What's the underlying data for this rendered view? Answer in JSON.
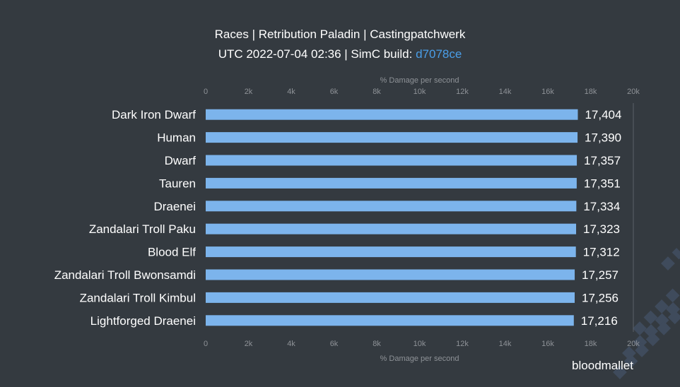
{
  "header": {
    "title": "Races | Retribution Paladin | Castingpatchwerk",
    "subtitle_prefix": "UTC 2022-07-04 02:36 | SimC build: ",
    "build_link": "d7078ce"
  },
  "brand": "bloodmallet",
  "colors": {
    "background": "#343a40",
    "bar": "#7cb4ec",
    "text": "#ffffff",
    "axis_text": "#8e9297",
    "link": "#4a9ee8"
  },
  "chart_data": {
    "type": "bar",
    "orientation": "horizontal",
    "categories": [
      "Dark Iron Dwarf",
      "Human",
      "Dwarf",
      "Tauren",
      "Draenei",
      "Zandalari Troll Paku",
      "Blood Elf",
      "Zandalari Troll Bwonsamdi",
      "Zandalari Troll Kimbul",
      "Lightforged Draenei"
    ],
    "values": [
      17404,
      17390,
      17357,
      17351,
      17334,
      17323,
      17312,
      17257,
      17256,
      17216
    ],
    "value_labels": [
      "17,404",
      "17,390",
      "17,357",
      "17,351",
      "17,334",
      "17,323",
      "17,312",
      "17,257",
      "17,256",
      "17,216"
    ],
    "xlabel": "% Damage per second",
    "xlim": [
      0,
      20000
    ],
    "tick_values": [
      0,
      2000,
      4000,
      6000,
      8000,
      10000,
      12000,
      14000,
      16000,
      18000,
      20000
    ],
    "tick_labels": [
      "0",
      "2k",
      "4k",
      "6k",
      "8k",
      "10k",
      "12k",
      "14k",
      "16k",
      "18k",
      "20k"
    ],
    "axis_positions": [
      "top",
      "bottom"
    ],
    "grid": false,
    "legend": "none"
  }
}
